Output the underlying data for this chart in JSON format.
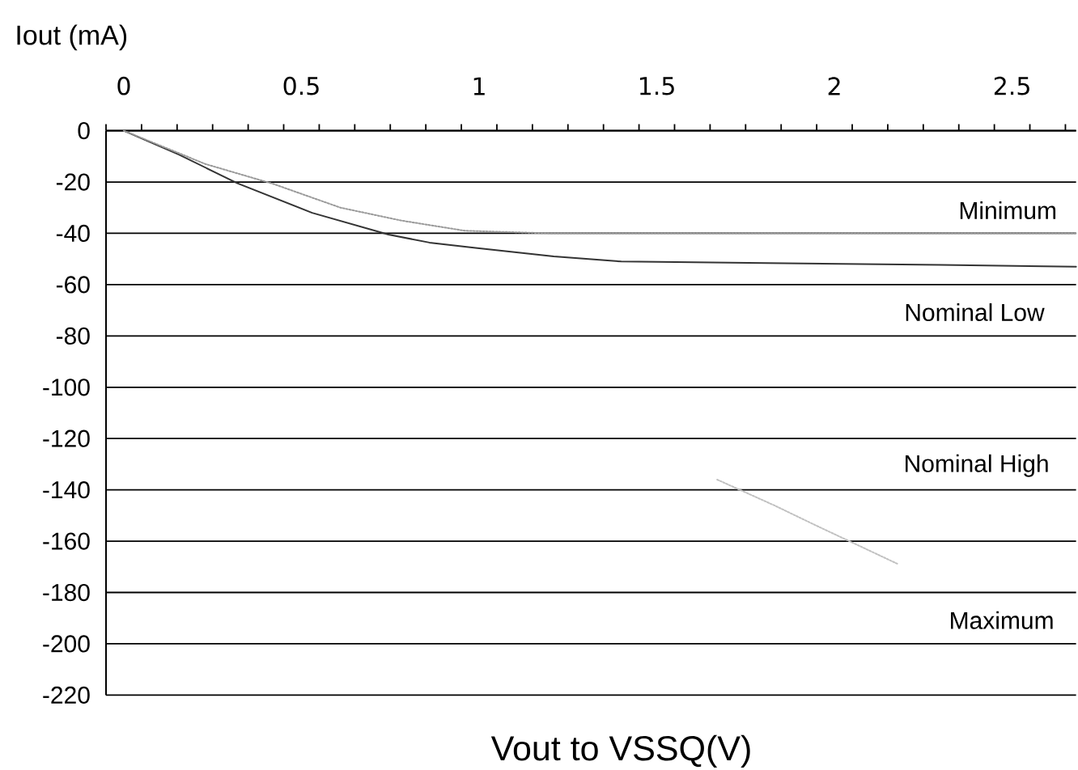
{
  "chart_data": {
    "type": "line",
    "xlabel": "Vout to VSSQ(V)",
    "ylabel": "Iout (mA)",
    "xlim": [
      -0.05,
      2.68
    ],
    "xticks": [
      {
        "value": -0.05,
        "label": null
      },
      0,
      {
        "value": 0.05,
        "label": null
      },
      {
        "value": 0.15,
        "label": null
      },
      {
        "value": 0.25,
        "label": null
      },
      {
        "value": 0.35,
        "label": null
      },
      {
        "value": 0.45,
        "label": null
      },
      0.5,
      {
        "value": 0.55,
        "label": null
      },
      {
        "value": 0.65,
        "label": null
      },
      {
        "value": 0.75,
        "label": null
      },
      {
        "value": 0.85,
        "label": null
      },
      {
        "value": 0.95,
        "label": null
      },
      1,
      {
        "value": 1.05,
        "label": null
      },
      {
        "value": 1.15,
        "label": null
      },
      {
        "value": 1.25,
        "label": null
      },
      {
        "value": 1.35,
        "label": null
      },
      {
        "value": 1.45,
        "label": null
      },
      1.5,
      {
        "value": 1.55,
        "label": null
      },
      {
        "value": 1.65,
        "label": null
      },
      {
        "value": 1.75,
        "label": null
      },
      {
        "value": 1.85,
        "label": null
      },
      {
        "value": 1.95,
        "label": null
      },
      2,
      {
        "value": 2.05,
        "label": null
      },
      {
        "value": 2.15,
        "label": null
      },
      {
        "value": 2.25,
        "label": null
      },
      {
        "value": 2.35,
        "label": null
      },
      {
        "value": 2.45,
        "label": null
      },
      2.5,
      {
        "value": 2.55,
        "label": null
      },
      {
        "value": 2.65,
        "label": null
      }
    ],
    "ylim": [
      -220,
      0
    ],
    "yticks": [
      -220,
      -200,
      -180,
      -160,
      -140,
      -120,
      -100,
      -80,
      -60,
      -40,
      -20,
      0
    ],
    "grid": "y",
    "marker": "none",
    "series": [
      {
        "color": "#333333",
        "line_style": "solid",
        "x": [
          0,
          0.155,
          0.32,
          0.53,
          0.745,
          0.86,
          0.99,
          1.21,
          1.4,
          1.86,
          2.3,
          2.68
        ],
        "values": [
          0,
          -9.3,
          -20.5,
          -32,
          -40.5,
          -43.6,
          -45.7,
          -49,
          -51,
          -51.7,
          -52.3,
          -53
        ]
      },
      {
        "color": "#999999",
        "line_style": "dotted",
        "x": [
          0,
          0.23,
          0.42,
          0.61,
          0.78,
          0.96,
          1.2,
          1.6,
          2.0,
          2.4,
          2.68
        ],
        "values": [
          0,
          -13,
          -20.7,
          -30,
          -35,
          -39,
          -40,
          -40,
          -40,
          -40,
          -40
        ]
      },
      {
        "color": "#c0c0c0",
        "line_style": "dotted",
        "x": [
          1.67,
          1.83,
          1.95,
          2.18
        ],
        "values": [
          -136,
          -146,
          -154,
          -169
        ]
      }
    ],
    "annotations": [
      "Minimum",
      "Nominal Low",
      "Nominal High",
      "Maximum"
    ]
  }
}
